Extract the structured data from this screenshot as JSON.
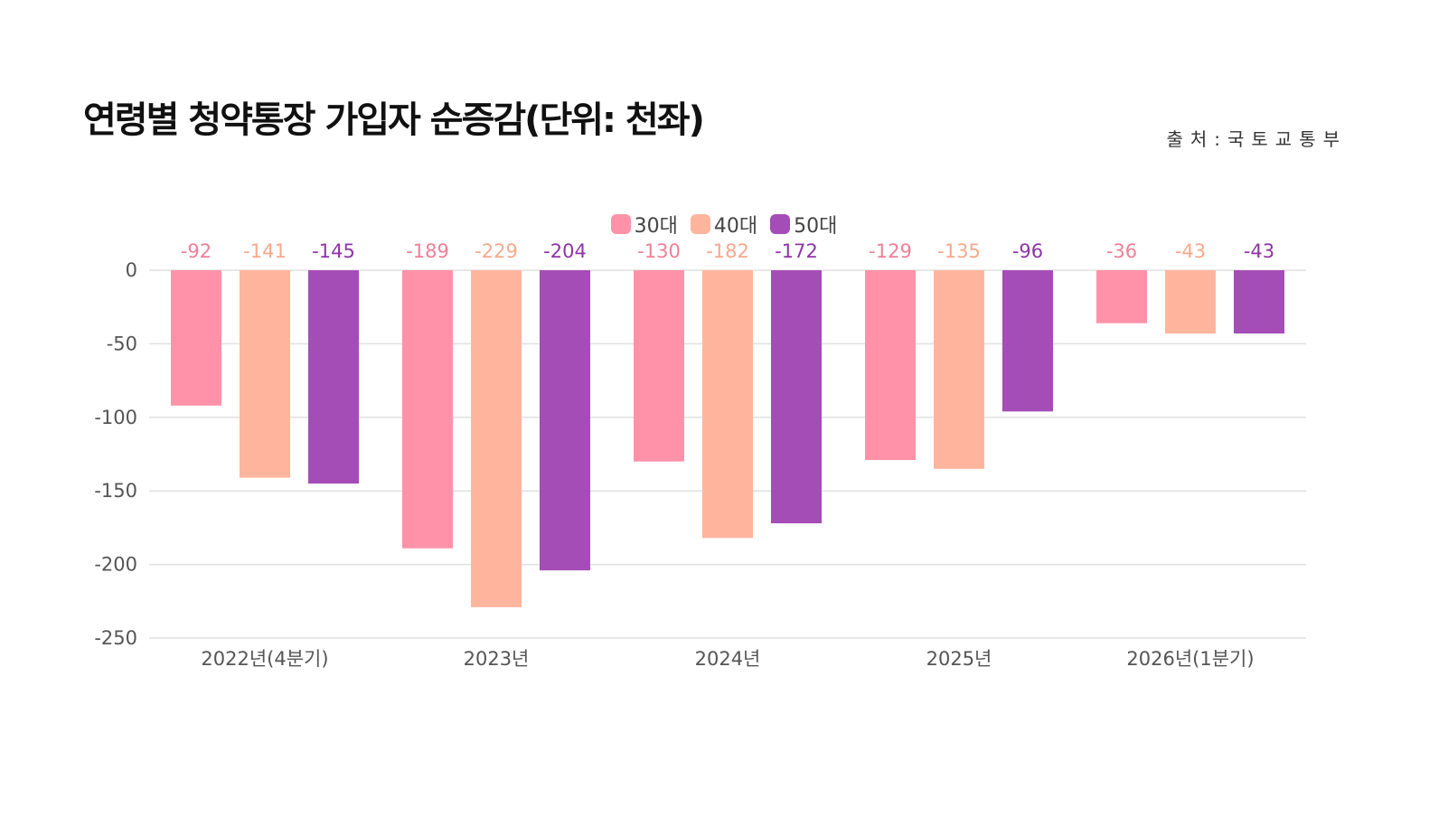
{
  "header": {
    "title": "연령별 청약통장 가입자 순증감(단위: 천좌)",
    "source": "출처:국토교통부"
  },
  "colors": {
    "s30": "#ff92a9",
    "s40": "#ffb59d",
    "s50": "#a54db7",
    "grid": "#e0e0e0",
    "label30": "#f07f98",
    "label40": "#f5a98c",
    "label50": "#8e35a6"
  },
  "chart_data": {
    "type": "bar",
    "title": "연령별 청약통장 가입자 순증감(단위: 천좌)",
    "categories": [
      "2022년(4분기)",
      "2023년",
      "2024년",
      "2025년",
      "2026년(1분기)"
    ],
    "series": [
      {
        "name": "30대",
        "values": [
          -92,
          -189,
          -130,
          -129,
          -36
        ]
      },
      {
        "name": "40대",
        "values": [
          -141,
          -229,
          -182,
          -135,
          -43
        ]
      },
      {
        "name": "50대",
        "values": [
          -145,
          -204,
          -172,
          -96,
          -43
        ]
      }
    ],
    "y_ticks": [
      0,
      -50,
      -100,
      -150,
      -200,
      -250
    ],
    "ylim": [
      -250,
      0
    ],
    "xlabel": "",
    "ylabel": "",
    "legend_position": "top-center",
    "grid": true
  }
}
